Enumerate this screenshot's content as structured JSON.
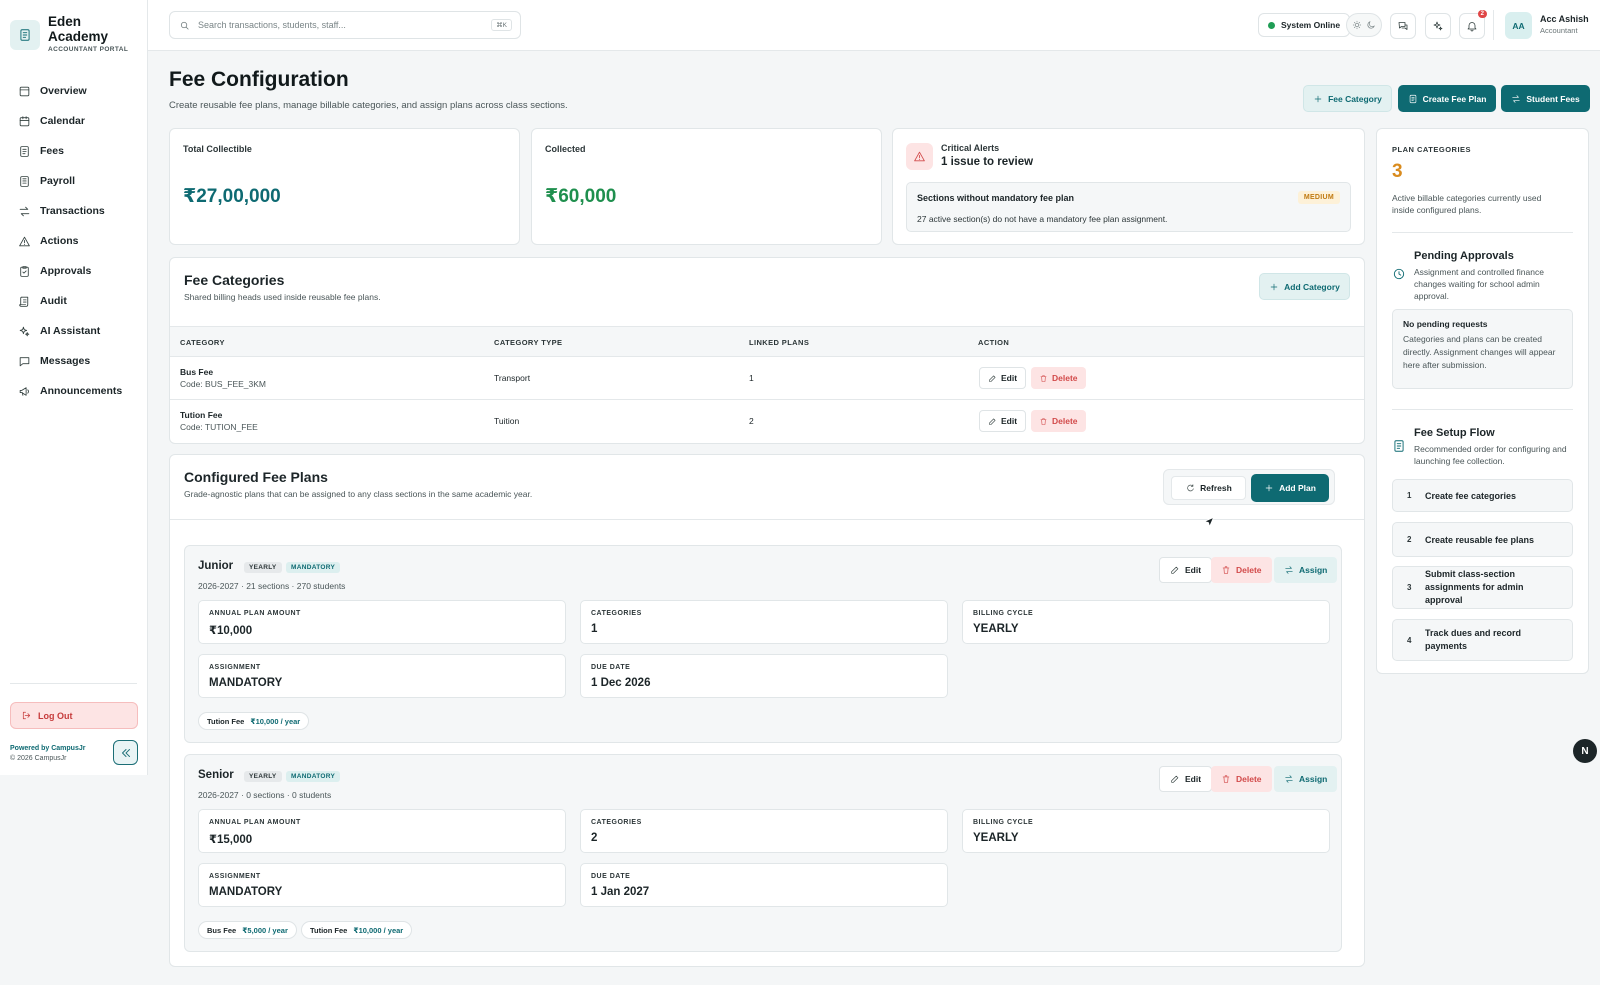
{
  "sidebar": {
    "brand": {
      "name": "Eden Academy",
      "portal": "ACCOUNTANT PORTAL"
    },
    "items": [
      {
        "label": "Overview",
        "icon": "overview-icon"
      },
      {
        "label": "Calendar",
        "icon": "calendar-icon"
      },
      {
        "label": "Fees",
        "icon": "fees-icon"
      },
      {
        "label": "Payroll",
        "icon": "payroll-icon"
      },
      {
        "label": "Transactions",
        "icon": "transactions-icon"
      },
      {
        "label": "Actions",
        "icon": "warning-icon"
      },
      {
        "label": "Approvals",
        "icon": "clipboard-check-icon"
      },
      {
        "label": "Audit",
        "icon": "scroll-icon"
      },
      {
        "label": "AI Assistant",
        "icon": "sparkles-icon"
      },
      {
        "label": "Messages",
        "icon": "message-icon"
      },
      {
        "label": "Announcements",
        "icon": "megaphone-icon"
      }
    ],
    "logout_label": "Log Out",
    "powered_by": "Powered by CampusJr",
    "copyright": "© 2026 CampusJr"
  },
  "topbar": {
    "search_placeholder": "Search transactions, students, staff...",
    "search_shortcut": "⌘K",
    "system_status": "System Online",
    "notification_count": "2",
    "avatar_initials": "AA",
    "user_name": "Acc Ashish",
    "user_role": "Accountant"
  },
  "header": {
    "title": "Fee Configuration",
    "subtitle": "Create reusable fee plans, manage billable categories, and assign plans across class sections.",
    "buttons": {
      "fee_category": "Fee Category",
      "create_fee_plan": "Create Fee Plan",
      "student_fees": "Student Fees"
    }
  },
  "stats": {
    "total_collectible": {
      "label": "Total Collectible",
      "value": "₹27,00,000"
    },
    "collected": {
      "label": "Collected",
      "value": "₹60,000"
    }
  },
  "alerts": {
    "label": "Critical Alerts",
    "title": "1 issue to review",
    "item": {
      "title": "Sections without mandatory fee plan",
      "severity": "MEDIUM",
      "description": "27 active section(s) do not have a mandatory fee plan assignment."
    }
  },
  "categories": {
    "title": "Fee Categories",
    "subtitle": "Shared billing heads used inside reusable fee plans.",
    "add_label": "Add Category",
    "columns": [
      "CATEGORY",
      "CATEGORY TYPE",
      "LINKED PLANS",
      "ACTION"
    ],
    "rows": [
      {
        "name": "Bus Fee",
        "code": "Code: BUS_FEE_3KM",
        "type": "Transport",
        "linked": "1"
      },
      {
        "name": "Tution Fee",
        "code": "Code: TUTION_FEE",
        "type": "Tuition",
        "linked": "2"
      }
    ],
    "edit_label": "Edit",
    "delete_label": "Delete"
  },
  "plans": {
    "title": "Configured Fee Plans",
    "subtitle": "Grade-agnostic plans that can be assigned to any class sections in the same academic year.",
    "refresh_label": "Refresh",
    "add_label": "Add Plan",
    "action_labels": {
      "edit": "Edit",
      "delete": "Delete",
      "assign": "Assign"
    },
    "field_labels": {
      "amount": "ANNUAL PLAN AMOUNT",
      "categories": "CATEGORIES",
      "cycle": "BILLING CYCLE",
      "assignment": "ASSIGNMENT",
      "due": "DUE DATE"
    },
    "items": [
      {
        "name": "Junior",
        "cycle_tag": "YEARLY",
        "type_tag": "MANDATORY",
        "meta": "2026-2027 · 21 sections · 270 students",
        "amount": "₹10,000",
        "categories": "1",
        "cycle": "YEARLY",
        "assignment": "MANDATORY",
        "due": "1 Dec 2026",
        "chips": [
          {
            "name": "Tution Fee",
            "amount": "₹10,000 / year"
          }
        ]
      },
      {
        "name": "Senior",
        "cycle_tag": "YEARLY",
        "type_tag": "MANDATORY",
        "meta": "2026-2027 · 0 sections · 0 students",
        "amount": "₹15,000",
        "categories": "2",
        "cycle": "YEARLY",
        "assignment": "MANDATORY",
        "due": "1 Jan 2027",
        "chips": [
          {
            "name": "Bus Fee",
            "amount": "₹5,000 / year"
          },
          {
            "name": "Tution Fee",
            "amount": "₹10,000 / year"
          }
        ]
      }
    ]
  },
  "right_panel": {
    "plan_categories": {
      "label": "PLAN CATEGORIES",
      "count": "3",
      "description": "Active billable categories currently used inside configured plans."
    },
    "pending": {
      "title": "Pending Approvals",
      "description": "Assignment and controlled finance changes waiting for school admin approval.",
      "box_title": "No pending requests",
      "box_description": "Categories and plans can be created directly. Assignment changes will appear here after submission."
    },
    "setup_flow": {
      "title": "Fee Setup Flow",
      "description": "Recommended order for configuring and launching fee collection.",
      "steps": [
        {
          "num": "1",
          "label": "Create fee categories"
        },
        {
          "num": "2",
          "label": "Create reusable fee plans"
        },
        {
          "num": "3",
          "label": "Submit class-section assignments for admin approval"
        },
        {
          "num": "4",
          "label": "Track dues and record payments"
        }
      ]
    }
  },
  "fab_label": "N",
  "colors": {
    "accent": "#0e6a72",
    "danger": "#d24a4a",
    "warning": "#d98b1e",
    "success": "#1f9d55"
  }
}
